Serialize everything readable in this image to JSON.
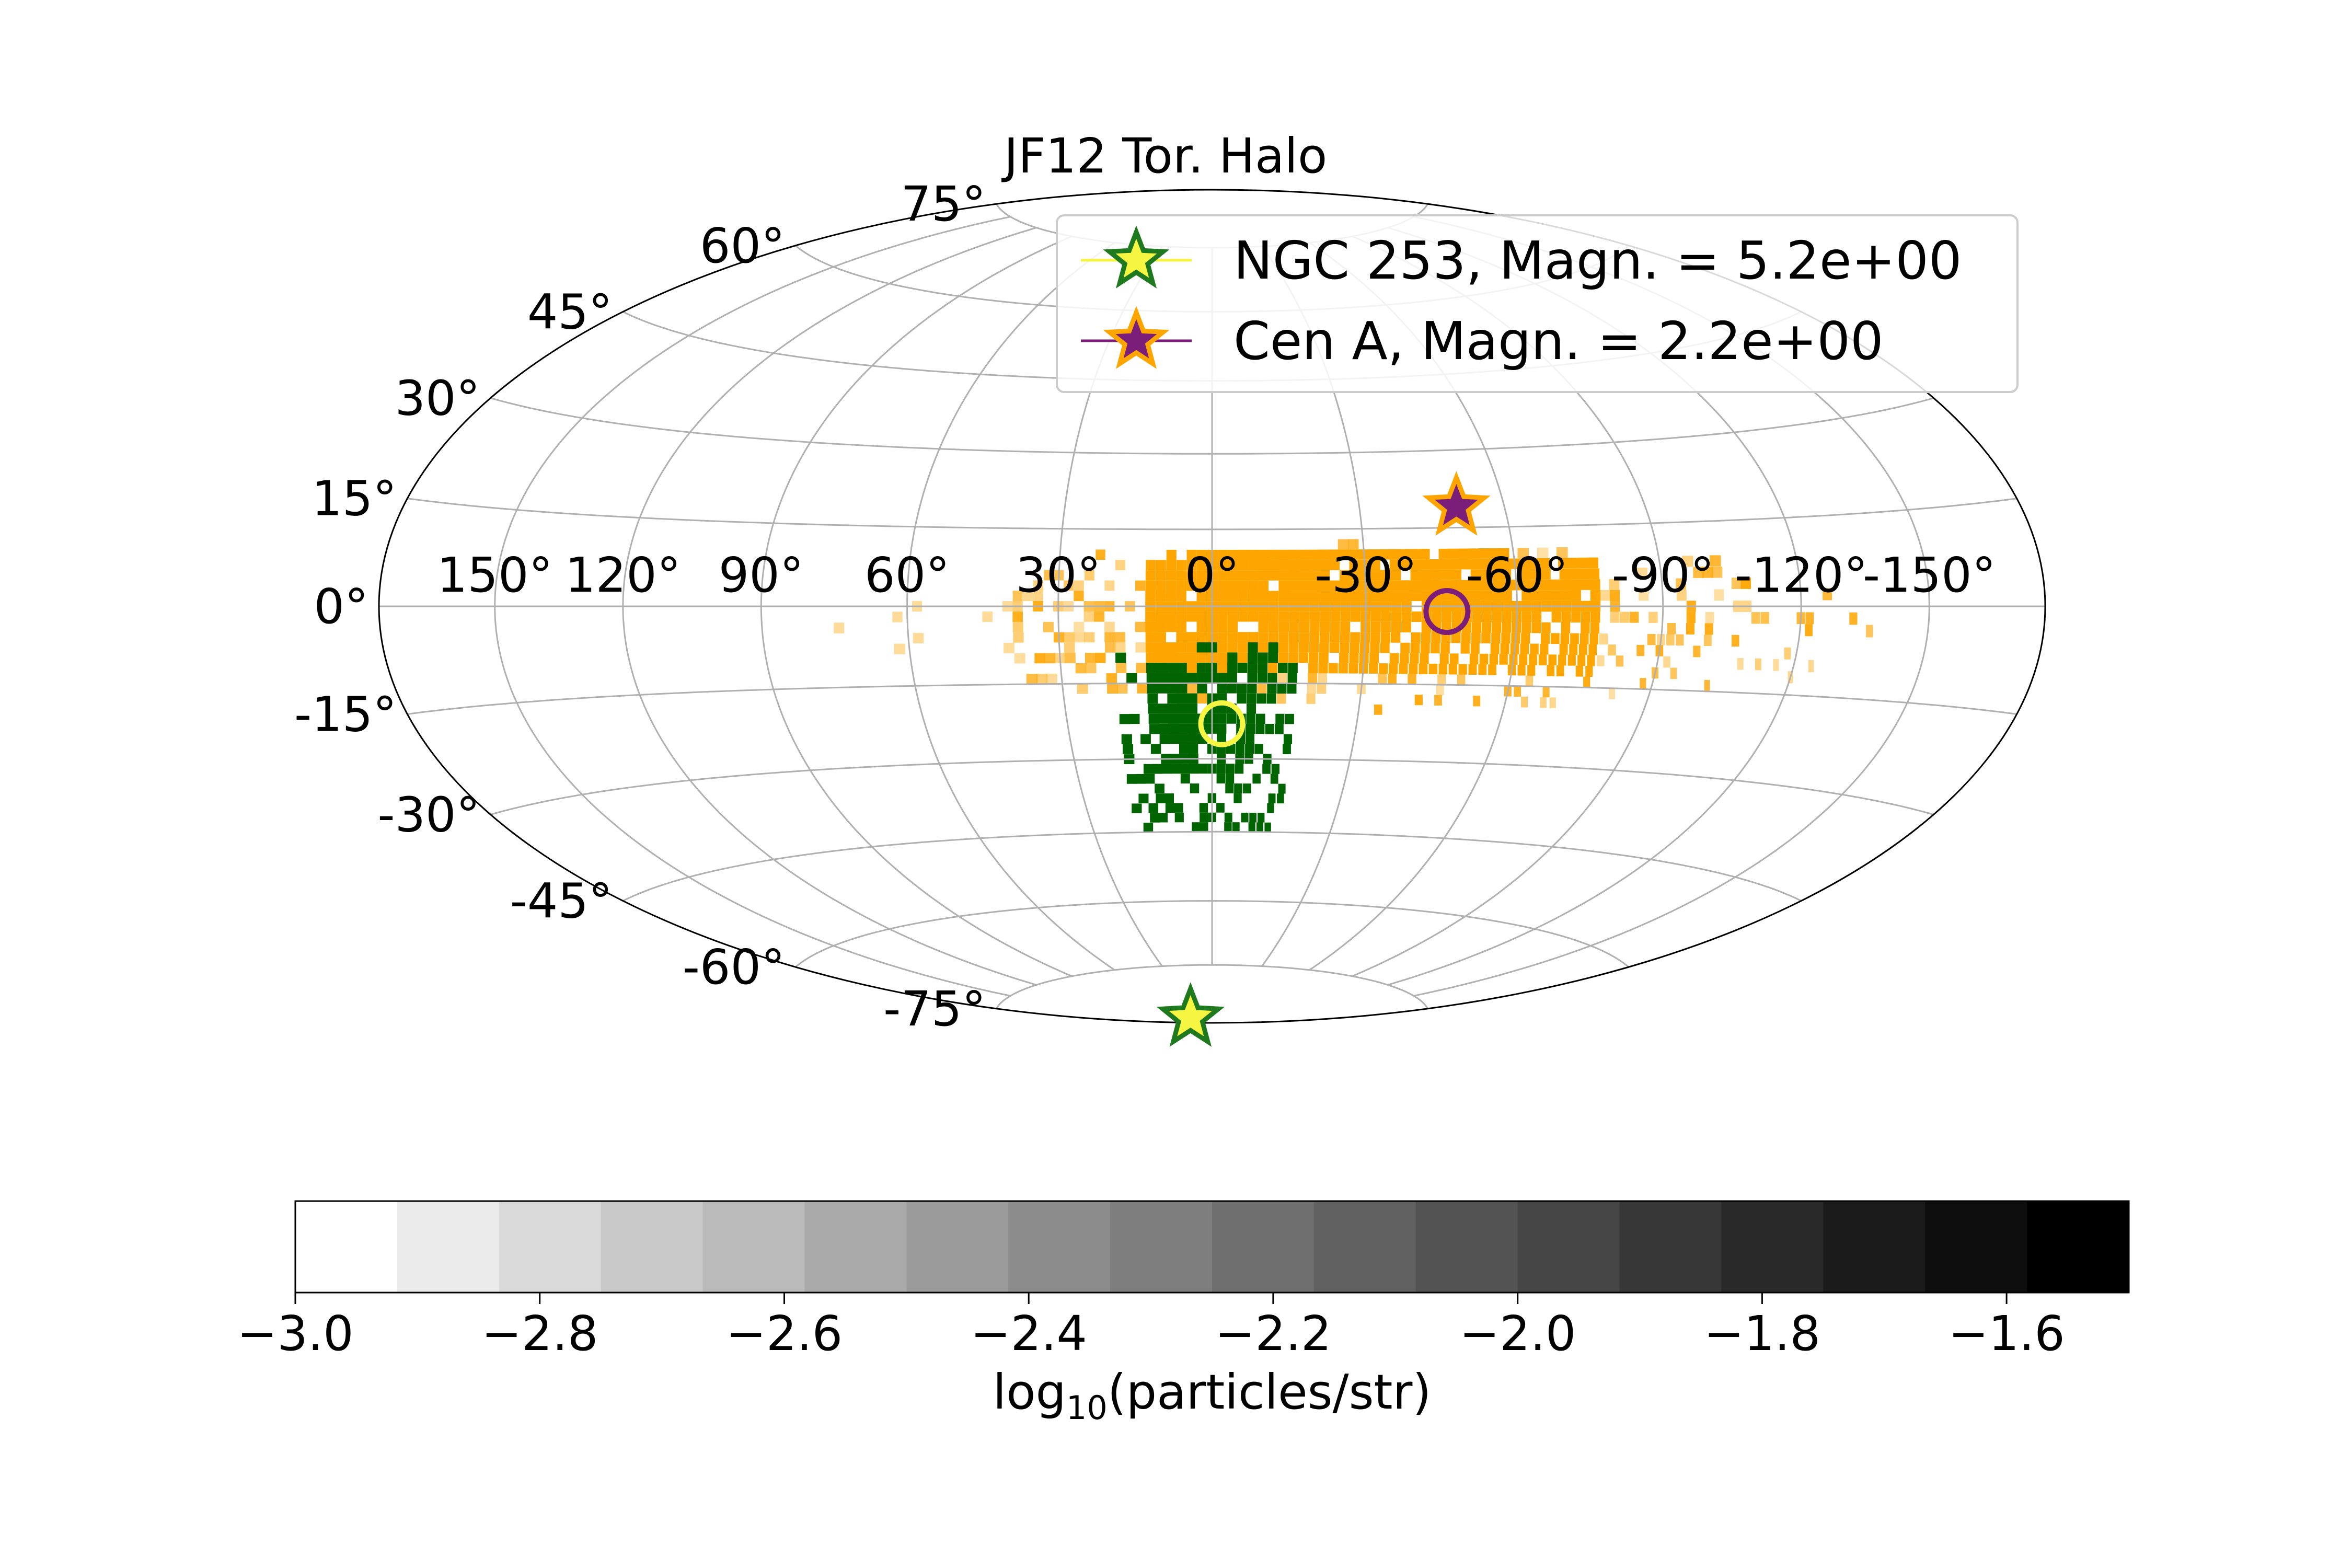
{
  "chart_data": {
    "type": "heatmap",
    "projection": "Hammer-Aitoff (all-sky)",
    "title": "JF12 Tor. Halo",
    "grid": true,
    "longitude_ticks": [
      "150°",
      "120°",
      "90°",
      "60°",
      "30°",
      "0°",
      "-30°",
      "-60°",
      "-90°",
      "-120°",
      "-150°"
    ],
    "latitude_ticks": [
      "75°",
      "60°",
      "45°",
      "30°",
      "15°",
      "0°",
      "-15°",
      "-30°",
      "-45°",
      "-60°",
      "-75°"
    ],
    "legend": {
      "placement": "top-right",
      "entries": [
        {
          "label": "NGC 253, Magn. = 5.2e+00",
          "marker_fill": "#f5f542",
          "marker_edge": "#1f7a1f",
          "line_color": "#f5f542"
        },
        {
          "label": "Cen A, Magn. = 2.2e+00",
          "marker_fill": "#7b1e7a",
          "marker_edge": "#ffa500",
          "line_color": "#7b1e7a"
        }
      ]
    },
    "sources": [
      {
        "name": "NGC 253",
        "role": "true source (star)",
        "lon": 97,
        "lat": -88
      },
      {
        "name": "NGC 253",
        "role": "deflected image center (circle)",
        "lon": -2,
        "lat": -23
      },
      {
        "name": "Cen A",
        "role": "true source (star)",
        "lon": -50,
        "lat": 19
      },
      {
        "name": "Cen A",
        "role": "deflected image center (circle)",
        "lon": -46,
        "lat": -1
      }
    ],
    "regions": [
      {
        "name": "NGC 253 arrival region",
        "color": "#006400",
        "lon_range": [
          -15,
          16
        ],
        "lat_range": [
          -42,
          -8
        ]
      },
      {
        "name": "Cen A arrival region",
        "color": "#ffa500",
        "lon_range": [
          -140,
          80
        ],
        "lat_range": [
          -25,
          12
        ]
      }
    ],
    "colorbar": {
      "label_prefix": "log",
      "label_subscript": "10",
      "label_suffix": "(particles/str)",
      "range": [
        -3.0,
        -1.5
      ],
      "ticks": [
        "−3.0",
        "−2.8",
        "−2.6",
        "−2.4",
        "−2.2",
        "−2.0",
        "−1.8",
        "−1.6"
      ],
      "levels": 18,
      "colormap": "Greys"
    }
  }
}
